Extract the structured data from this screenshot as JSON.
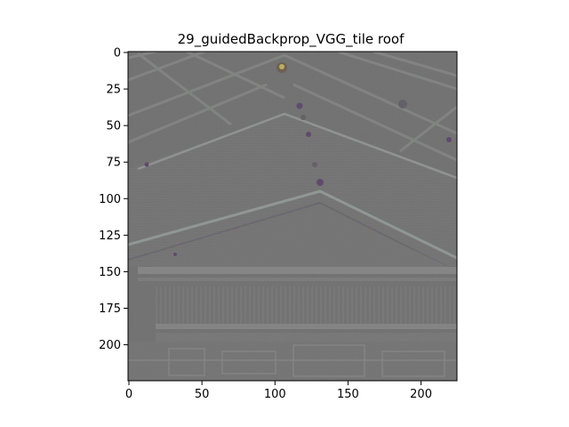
{
  "figure": {
    "title": "29_guidedBackprop_VGG_tile roof"
  },
  "image": {
    "description": "guided backpropagation saliency map of a tile roof building rendered in grey",
    "base_color": "#737373",
    "edge_highlight": "#9aa3a0",
    "edge_shadow": "#5f5a64",
    "accent_purple": "#5a3d6b",
    "accent_yellow": "#d6c25a"
  },
  "axes": {
    "x_range": [
      0,
      224
    ],
    "y_range": [
      224,
      0
    ],
    "x_ticks": [
      0,
      50,
      100,
      150,
      200
    ],
    "y_ticks": [
      0,
      25,
      50,
      75,
      100,
      125,
      150,
      175,
      200
    ]
  }
}
